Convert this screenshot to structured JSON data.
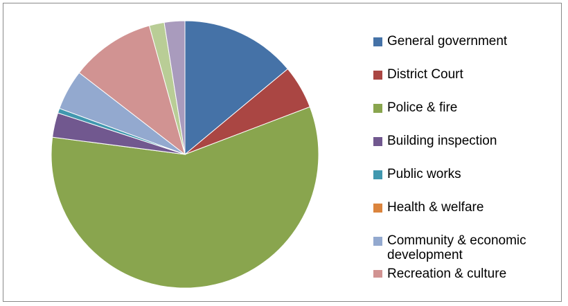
{
  "chart_data": {
    "type": "pie",
    "title": "",
    "legend_position": "right",
    "start_angle_deg": 0,
    "direction": "clockwise",
    "categories": [
      "General government",
      "District Court",
      "Police & fire",
      "Building inspection",
      "Public works",
      "Health & welfare",
      "Community & economic development",
      "Recreation & culture",
      "",
      ""
    ],
    "values": [
      14.6,
      5.5,
      60.5,
      3.1,
      0.6,
      0.0,
      5.1,
      10.7,
      1.9,
      2.6
    ],
    "colors": [
      "#4572A7",
      "#AA4643",
      "#89A54E",
      "#71588F",
      "#4198AF",
      "#DB843D",
      "#93A9CF",
      "#D19392",
      "#B9CD96",
      "#A99BBD"
    ]
  }
}
